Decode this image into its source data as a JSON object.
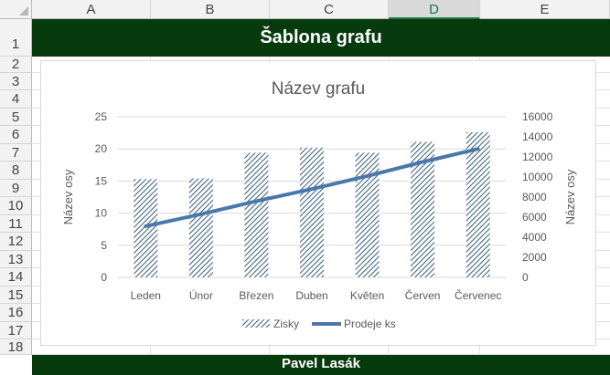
{
  "sheet": {
    "columns": [
      "A",
      "B",
      "C",
      "D",
      "E"
    ],
    "selected_column": "D",
    "rows": [
      "1",
      "2",
      "3",
      "4",
      "5",
      "6",
      "7",
      "8",
      "9",
      "10",
      "11",
      "12",
      "13",
      "14",
      "15",
      "16",
      "17",
      "18"
    ],
    "title": "Šablona grafu",
    "footer": "Pavel Lasák",
    "band_color": "#073b0e"
  },
  "chart_data": {
    "type": "bar",
    "title": "Název grafu",
    "categories": [
      "Leden",
      "Únor",
      "Březen",
      "Duben",
      "Květen",
      "Červen",
      "Červenec"
    ],
    "series": [
      {
        "name": "Zisky",
        "type": "bar",
        "axis": "left",
        "values": [
          15.3,
          15.4,
          19.4,
          20.2,
          19.4,
          21.1,
          22.6
        ],
        "color": "#44677f",
        "pattern": "diagonal-hatch"
      },
      {
        "name": "Prodeje ks",
        "type": "line",
        "axis": "right",
        "values": [
          5100,
          6300,
          7600,
          8800,
          10100,
          11500,
          12800
        ],
        "color": "#4a78ac"
      }
    ],
    "y_left": {
      "label": "Název osy",
      "min": 0,
      "max": 25,
      "ticks": [
        "0",
        "5",
        "10",
        "15",
        "20",
        "25"
      ]
    },
    "y_right": {
      "label": "Název osy",
      "min": 0,
      "max": 16000,
      "ticks": [
        "0",
        "2000",
        "4000",
        "6000",
        "8000",
        "10000",
        "12000",
        "14000",
        "16000"
      ]
    },
    "grid": true,
    "legend_position": "bottom"
  }
}
